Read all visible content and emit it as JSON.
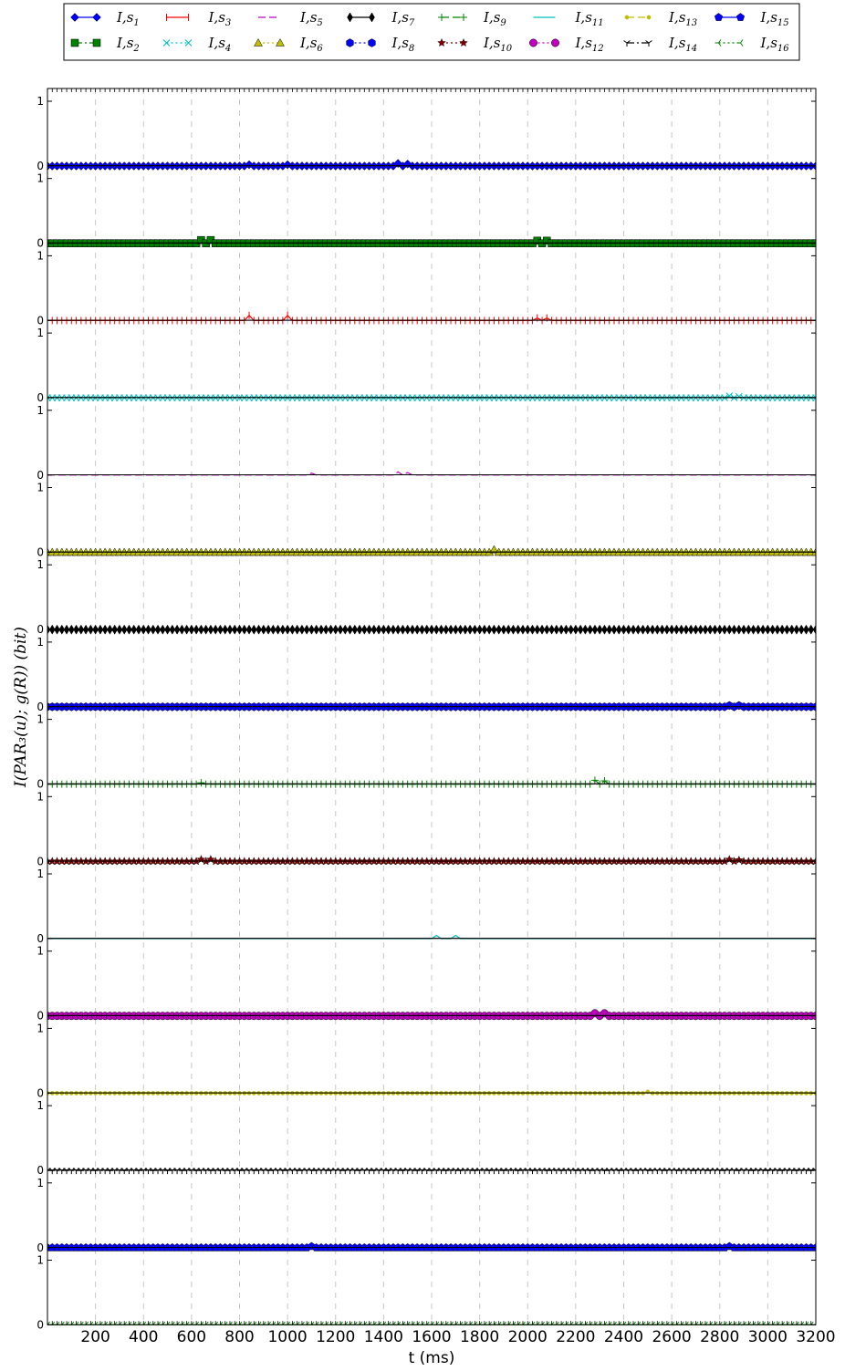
{
  "chart_data": {
    "type": "line",
    "xlabel": "t (ms)",
    "ylabel": "I(PAR₃(u); g(R))   (bit)",
    "xlim": [
      0,
      3200
    ],
    "ylim": [
      0,
      1
    ],
    "x_ticks": [
      200,
      400,
      600,
      800,
      1000,
      1200,
      1400,
      1600,
      1800,
      2000,
      2200,
      2400,
      2600,
      2800,
      3000,
      3200
    ],
    "y_ticks": [
      0,
      1
    ],
    "grid": "vertical dashed",
    "legend_position": "top",
    "sample_step_ms": 20,
    "series": [
      {
        "name": "I,s1",
        "label_main": "I,s",
        "label_sub": "1",
        "color": "#0000ff",
        "marker": "diamond",
        "linestyle": "solid",
        "values_baseline": 0,
        "bumps": [
          [
            840,
            0.02
          ],
          [
            1000,
            0.02
          ],
          [
            1460,
            0.04
          ],
          [
            1500,
            0.03
          ]
        ]
      },
      {
        "name": "I,s2",
        "label_main": "I,s",
        "label_sub": "2",
        "color": "#008000",
        "marker": "square",
        "linestyle": "dashdot",
        "values_baseline": 0,
        "bumps": [
          [
            640,
            0.05
          ],
          [
            680,
            0.05
          ],
          [
            2040,
            0.04
          ],
          [
            2080,
            0.04
          ]
        ]
      },
      {
        "name": "I,s3",
        "label_main": "I,s",
        "label_sub": "3",
        "color": "#ff0000",
        "marker": "hline",
        "linestyle": "solid",
        "values_baseline": 0,
        "bumps": [
          [
            840,
            0.08
          ],
          [
            1000,
            0.08
          ],
          [
            2040,
            0.04
          ],
          [
            2080,
            0.04
          ]
        ]
      },
      {
        "name": "I,s4",
        "label_main": "I,s",
        "label_sub": "4",
        "color": "#00bfbf",
        "marker": "x",
        "linestyle": "dotted",
        "values_baseline": 0,
        "bumps": [
          [
            2840,
            0.03
          ],
          [
            2880,
            0.02
          ]
        ]
      },
      {
        "name": "I,s5",
        "label_main": "I,s",
        "label_sub": "5",
        "color": "#bf00bf",
        "marker": "none",
        "linestyle": "dashed",
        "values_baseline": 0,
        "bumps": [
          [
            1100,
            0.03
          ],
          [
            1460,
            0.05
          ],
          [
            1500,
            0.04
          ]
        ]
      },
      {
        "name": "I,s6",
        "label_main": "I,s",
        "label_sub": "6",
        "color": "#bfbf00",
        "marker": "triangle",
        "linestyle": "dotted",
        "values_baseline": 0,
        "bumps": [
          [
            1860,
            0.04
          ]
        ]
      },
      {
        "name": "I,s7",
        "label_main": "I,s",
        "label_sub": "7",
        "color": "#000000",
        "marker": "thindiamond",
        "linestyle": "solid",
        "values_baseline": 0,
        "bumps": []
      },
      {
        "name": "I,s8",
        "label_main": "I,s",
        "label_sub": "8",
        "color": "#0000ff",
        "marker": "hexagon",
        "linestyle": "dotted",
        "values_baseline": 0,
        "bumps": [
          [
            2840,
            0.02
          ],
          [
            2880,
            0.02
          ]
        ]
      },
      {
        "name": "I,s9",
        "label_main": "I,s",
        "label_sub": "9",
        "color": "#008000",
        "marker": "plus",
        "linestyle": "dashed",
        "values_baseline": 0,
        "bumps": [
          [
            640,
            0.02
          ],
          [
            2280,
            0.06
          ],
          [
            2320,
            0.05
          ]
        ]
      },
      {
        "name": "I,s10",
        "label_main": "I,s",
        "label_sub": "10",
        "color": "#800000",
        "marker": "star",
        "linestyle": "dotted",
        "values_baseline": 0,
        "bumps": [
          [
            640,
            0.03
          ],
          [
            680,
            0.03
          ],
          [
            2840,
            0.03
          ],
          [
            2880,
            0.02
          ]
        ]
      },
      {
        "name": "I,s11",
        "label_main": "I,s",
        "label_sub": "11",
        "color": "#00bfbf",
        "marker": "none",
        "linestyle": "solid",
        "values_baseline": 0,
        "bumps": [
          [
            1620,
            0.05
          ],
          [
            1700,
            0.05
          ]
        ]
      },
      {
        "name": "I,s12",
        "label_main": "I,s",
        "label_sub": "12",
        "color": "#bf00bf",
        "marker": "circle",
        "linestyle": "dotted",
        "values_baseline": 0,
        "bumps": [
          [
            2280,
            0.04
          ],
          [
            2320,
            0.04
          ]
        ]
      },
      {
        "name": "I,s13",
        "label_main": "I,s",
        "label_sub": "13",
        "color": "#bfbf00",
        "marker": "point",
        "linestyle": "dashed",
        "values_baseline": 0,
        "bumps": [
          [
            2500,
            0.02
          ]
        ]
      },
      {
        "name": "I,s14",
        "label_main": "I,s",
        "label_sub": "14",
        "color": "#000000",
        "marker": "tri",
        "linestyle": "dashdot",
        "values_baseline": 0,
        "bumps": []
      },
      {
        "name": "I,s15",
        "label_main": "I,s",
        "label_sub": "15",
        "color": "#0000ff",
        "marker": "pentagon",
        "linestyle": "solid",
        "values_baseline": 0,
        "bumps": [
          [
            1100,
            0.02
          ],
          [
            2840,
            0.02
          ]
        ]
      },
      {
        "name": "I,s16",
        "label_main": "I,s",
        "label_sub": "16",
        "color": "#008000",
        "marker": "trileft",
        "linestyle": "dotted",
        "values_baseline": 0,
        "bumps": []
      }
    ]
  }
}
